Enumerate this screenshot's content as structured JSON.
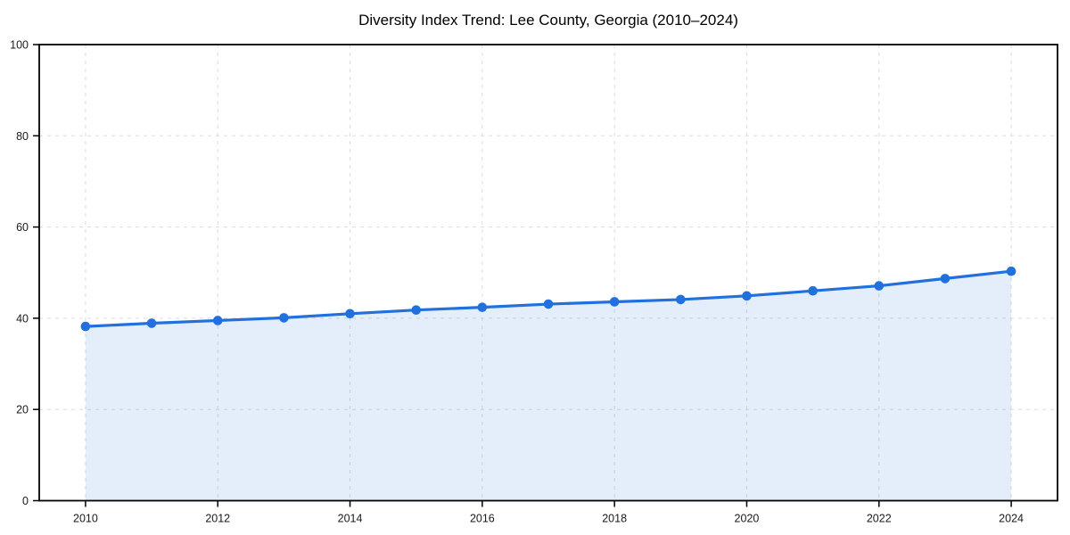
{
  "chart_data": {
    "type": "line",
    "title": "Diversity Index Trend: Lee County, Georgia (2010–2024)",
    "series": [
      {
        "name": "Diversity Index",
        "x": [
          2010,
          2011,
          2012,
          2013,
          2014,
          2015,
          2016,
          2017,
          2018,
          2019,
          2020,
          2021,
          2022,
          2023,
          2024
        ],
        "values": [
          38.2,
          38.9,
          39.5,
          40.1,
          41.0,
          41.8,
          42.4,
          43.1,
          43.6,
          44.1,
          44.9,
          46.0,
          47.1,
          48.7,
          50.3
        ]
      }
    ],
    "xlabel": "",
    "ylabel": "",
    "xticks": [
      2010,
      2012,
      2014,
      2016,
      2018,
      2020,
      2022,
      2024
    ],
    "yticks": [
      0,
      20,
      40,
      60,
      80,
      100
    ],
    "xlim": [
      2009.3,
      2024.7
    ],
    "ylim": [
      0,
      100
    ],
    "grid": true,
    "grid_style": "dashed",
    "legend": "none",
    "marker": "circle",
    "colors": {
      "line": "#2170de",
      "marker": "#2170de",
      "area_fill": "#2170de",
      "area_fill_opacity": 0.12,
      "grid": "#dcdcdc",
      "axis": "#000000",
      "tick_label": "#1a1a1a",
      "title": "#000000",
      "background": "#ffffff"
    }
  }
}
